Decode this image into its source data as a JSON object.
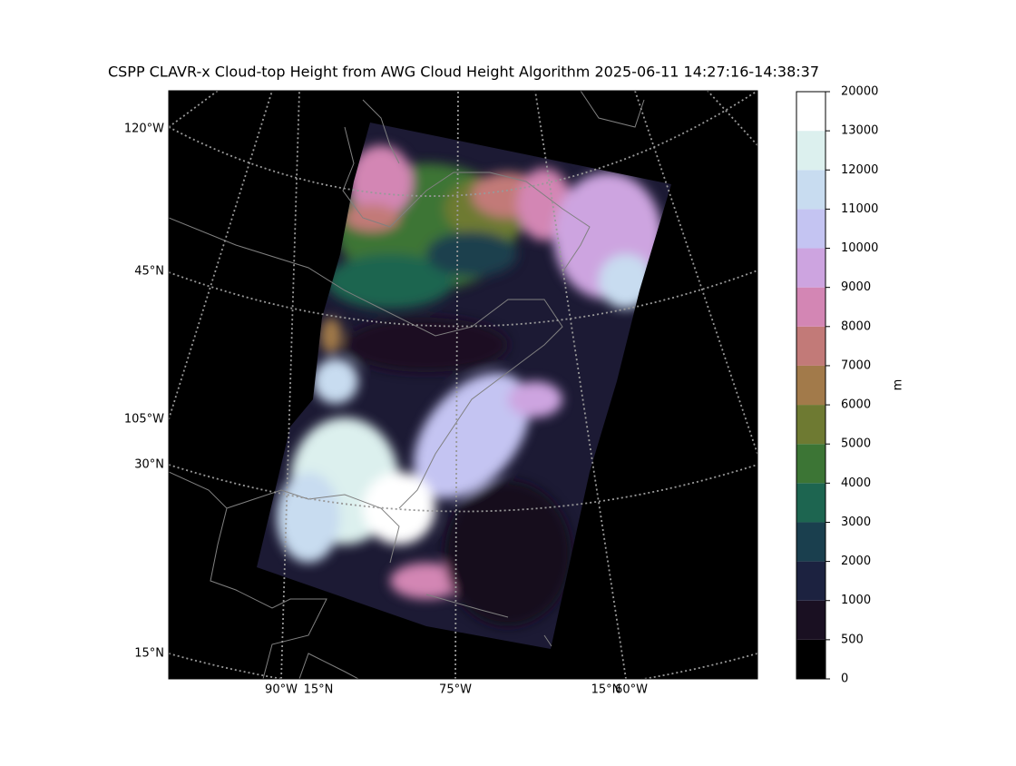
{
  "title": "CSPP CLAVR-x Cloud-top Height from AWG Cloud Height Algorithm 2025-06-11 14:27:16-14:38:37",
  "map": {
    "left_labels": [
      "120°W",
      "45°N",
      "105°W",
      "30°N",
      "15°N"
    ],
    "bottom_labels": [
      "90°W",
      "15°N",
      "75°W",
      "15°N",
      "60°W"
    ]
  },
  "colorbar": {
    "label": "m",
    "ticks": [
      0,
      500,
      1000,
      2000,
      3000,
      4000,
      5000,
      6000,
      7000,
      8000,
      9000,
      10000,
      11000,
      12000,
      13000,
      20000
    ],
    "colors": [
      "#000000",
      "#1a1022",
      "#1c2240",
      "#1a3f4e",
      "#1d6550",
      "#3c7535",
      "#6e7a32",
      "#a27a4a",
      "#c27a78",
      "#d386b4",
      "#cda4e0",
      "#c4c4f2",
      "#c8dcf0",
      "#dcf0ee",
      "#ffffff"
    ]
  }
}
